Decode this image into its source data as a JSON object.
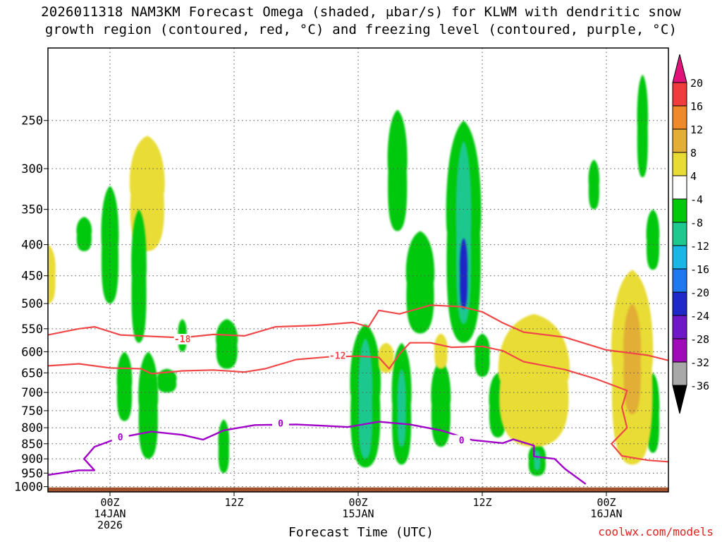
{
  "title_line1": "2026011318 NAM3KM Forecast Omega (shaded, μbar/s) for KLWM with dendritic snow",
  "title_line2": "growth region (contoured, red, °C) and freezing level (contoured, purple, °C)",
  "xlabel": "Forecast Time (UTC)",
  "credit": "coolwx.com/models",
  "chart_data": {
    "type": "heatmap",
    "x_unit": "forecast hour",
    "x_range": [
      -6,
      54
    ],
    "y_unit": "hPa",
    "y_range": [
      1020,
      190
    ],
    "y_ticks": [
      250,
      300,
      350,
      400,
      450,
      500,
      550,
      600,
      650,
      700,
      750,
      800,
      850,
      900,
      950,
      1000
    ],
    "x_ticks": [
      {
        "hour": 0,
        "lines": [
          "00Z",
          "14JAN",
          "2026"
        ]
      },
      {
        "hour": 12,
        "lines": [
          "12Z"
        ]
      },
      {
        "hour": 24,
        "lines": [
          "00Z",
          "15JAN"
        ]
      },
      {
        "hour": 36,
        "lines": [
          "12Z"
        ]
      },
      {
        "hour": 48,
        "lines": [
          "00Z",
          "16JAN"
        ]
      }
    ],
    "colorbar": {
      "labels": [
        "20",
        "16",
        "12",
        "8",
        "4",
        "-4",
        "-8",
        "-12",
        "-16",
        "-20",
        "-24",
        "-28",
        "-32",
        "-36"
      ],
      "bins": [
        {
          "lo": 20,
          "hi": null,
          "color": "#e0137a"
        },
        {
          "lo": 16,
          "hi": 20,
          "color": "#f03c3c"
        },
        {
          "lo": 12,
          "hi": 16,
          "color": "#ee8a2a"
        },
        {
          "lo": 8,
          "hi": 12,
          "color": "#e2ae36"
        },
        {
          "lo": 4,
          "hi": 8,
          "color": "#e8dc34"
        },
        {
          "lo": -4,
          "hi": 4,
          "color": "#ffffff"
        },
        {
          "lo": -8,
          "hi": -4,
          "color": "#00c80a"
        },
        {
          "lo": -12,
          "hi": -8,
          "color": "#1fc88e"
        },
        {
          "lo": -16,
          "hi": -12,
          "color": "#19b6e6"
        },
        {
          "lo": -20,
          "hi": -16,
          "color": "#1f78f0"
        },
        {
          "lo": -24,
          "hi": -20,
          "color": "#1f28c8"
        },
        {
          "lo": -28,
          "hi": -24,
          "color": "#6e18c8"
        },
        {
          "lo": -32,
          "hi": -28,
          "color": "#a00ab8"
        },
        {
          "lo": -36,
          "hi": -32,
          "color": "#a8a8a8"
        },
        {
          "lo": null,
          "hi": -36,
          "color": "#000000"
        }
      ]
    },
    "omega_features": [
      {
        "hour": -6,
        "top": 400,
        "bottom": 500,
        "width_h": 1.4,
        "value": 6
      },
      {
        "hour": 3.6,
        "top": 265,
        "bottom": 410,
        "width_h": 3.2,
        "value": 6
      },
      {
        "hour": -2.5,
        "top": 360,
        "bottom": 410,
        "width_h": 1.4,
        "value": -6
      },
      {
        "hour": 0,
        "top": 320,
        "bottom": 500,
        "width_h": 1.6,
        "value": -6
      },
      {
        "hour": 2.8,
        "top": 350,
        "bottom": 580,
        "width_h": 1.4,
        "value": -6
      },
      {
        "hour": 1.4,
        "top": 600,
        "bottom": 780,
        "width_h": 1.4,
        "value": -6
      },
      {
        "hour": 3.7,
        "top": 600,
        "bottom": 900,
        "width_h": 1.8,
        "value": -6
      },
      {
        "hour": 5.5,
        "top": 640,
        "bottom": 700,
        "width_h": 1.8,
        "value": -6
      },
      {
        "hour": 7,
        "top": 530,
        "bottom": 600,
        "width_h": 0.8,
        "value": -6
      },
      {
        "hour": 11.3,
        "top": 530,
        "bottom": 640,
        "width_h": 2,
        "value": -6
      },
      {
        "hour": 11,
        "top": 775,
        "bottom": 950,
        "width_h": 1,
        "value": -6
      },
      {
        "hour": 24.7,
        "top": 540,
        "bottom": 930,
        "width_h": 2.8,
        "value": -6
      },
      {
        "hour": 24.7,
        "top": 570,
        "bottom": 900,
        "width_h": 1.3,
        "value": -10
      },
      {
        "hour": 28.2,
        "top": 580,
        "bottom": 920,
        "width_h": 1.8,
        "value": -6
      },
      {
        "hour": 28.2,
        "top": 640,
        "bottom": 860,
        "width_h": 0.8,
        "value": -10
      },
      {
        "hour": 27.8,
        "top": 240,
        "bottom": 380,
        "width_h": 1.8,
        "value": -6
      },
      {
        "hour": 30,
        "top": 380,
        "bottom": 560,
        "width_h": 2.6,
        "value": -6
      },
      {
        "hour": 34.2,
        "top": 250,
        "bottom": 580,
        "width_h": 3.2,
        "value": -6
      },
      {
        "hour": 34.2,
        "top": 270,
        "bottom": 540,
        "width_h": 1.4,
        "value": -12
      },
      {
        "hour": 34.2,
        "top": 390,
        "bottom": 510,
        "width_h": 0.7,
        "value": -22
      },
      {
        "hour": 36,
        "top": 560,
        "bottom": 660,
        "width_h": 1.4,
        "value": -6
      },
      {
        "hour": 32,
        "top": 620,
        "bottom": 860,
        "width_h": 1.8,
        "value": -6
      },
      {
        "hour": 37.5,
        "top": 650,
        "bottom": 830,
        "width_h": 1.6,
        "value": -6
      },
      {
        "hour": 46.8,
        "top": 290,
        "bottom": 350,
        "width_h": 1,
        "value": -6
      },
      {
        "hour": 51.5,
        "top": 210,
        "bottom": 310,
        "width_h": 1,
        "value": -6
      },
      {
        "hour": 52.5,
        "top": 350,
        "bottom": 440,
        "width_h": 1.2,
        "value": -6
      },
      {
        "hour": 52.5,
        "top": 650,
        "bottom": 880,
        "width_h": 1.2,
        "value": -6
      },
      {
        "hour": 41.3,
        "top": 850,
        "bottom": 960,
        "width_h": 1.6,
        "value": -6
      },
      {
        "hour": 41.3,
        "top": 870,
        "bottom": 940,
        "width_h": 0.6,
        "value": -12
      },
      {
        "hour": 26.7,
        "top": 580,
        "bottom": 650,
        "width_h": 1.4,
        "value": 6
      },
      {
        "hour": 32,
        "top": 560,
        "bottom": 640,
        "width_h": 1.2,
        "value": 6
      },
      {
        "hour": 41,
        "top": 520,
        "bottom": 860,
        "width_h": 6.5,
        "value": 6
      },
      {
        "hour": 50.5,
        "top": 440,
        "bottom": 920,
        "width_h": 3.8,
        "value": 6
      },
      {
        "hour": 50.5,
        "top": 500,
        "bottom": 760,
        "width_h": 1.6,
        "value": 10
      }
    ],
    "dendritic_isotherms": [
      {
        "label": "-18",
        "label_at": [
          7,
          573
        ],
        "points": [
          [
            -6,
            563
          ],
          [
            -3,
            550
          ],
          [
            -1.5,
            546
          ],
          [
            1,
            563
          ],
          [
            4,
            566
          ],
          [
            7,
            569
          ],
          [
            10,
            562
          ],
          [
            13,
            565
          ],
          [
            16,
            546
          ],
          [
            20,
            543
          ],
          [
            23.5,
            537
          ],
          [
            25,
            546
          ],
          [
            26,
            513
          ],
          [
            28,
            520
          ],
          [
            31,
            503
          ],
          [
            34,
            506
          ],
          [
            36,
            516
          ],
          [
            38,
            538
          ],
          [
            40,
            557
          ],
          [
            44,
            568
          ],
          [
            48,
            596
          ],
          [
            52,
            608
          ],
          [
            54,
            620
          ]
        ]
      },
      {
        "label": "-12",
        "label_at": [
          22,
          610
        ],
        "points": [
          [
            -6,
            633
          ],
          [
            -3,
            628
          ],
          [
            0,
            638
          ],
          [
            3,
            640
          ],
          [
            4,
            652
          ],
          [
            7,
            645
          ],
          [
            10,
            643
          ],
          [
            13,
            648
          ],
          [
            15,
            640
          ],
          [
            18,
            618
          ],
          [
            21,
            612
          ],
          [
            24,
            610
          ],
          [
            26,
            613
          ],
          [
            27,
            640
          ],
          [
            28,
            605
          ],
          [
            29,
            580
          ],
          [
            31,
            580
          ],
          [
            33,
            590
          ],
          [
            36,
            588
          ],
          [
            38,
            598
          ],
          [
            40,
            623
          ],
          [
            44,
            642
          ],
          [
            47,
            665
          ],
          [
            50,
            695
          ],
          [
            49.5,
            740
          ],
          [
            50,
            800
          ],
          [
            48.5,
            850
          ],
          [
            49.5,
            890
          ],
          [
            52,
            905
          ],
          [
            54,
            910
          ]
        ]
      }
    ],
    "freezing_level": {
      "label": "0",
      "label_at": [
        [
          1,
          830
        ],
        [
          16.5,
          788
        ],
        [
          34,
          840
        ]
      ],
      "points": [
        [
          -6,
          957
        ],
        [
          -3,
          940
        ],
        [
          -1.5,
          940
        ],
        [
          -2.5,
          900
        ],
        [
          -1.5,
          860
        ],
        [
          1,
          830
        ],
        [
          4,
          812
        ],
        [
          7,
          822
        ],
        [
          9,
          837
        ],
        [
          11,
          808
        ],
        [
          14,
          792
        ],
        [
          18,
          790
        ],
        [
          20,
          793
        ],
        [
          23,
          798
        ],
        [
          26,
          782
        ],
        [
          29,
          790
        ],
        [
          32,
          808
        ],
        [
          35,
          838
        ],
        [
          38,
          848
        ],
        [
          39,
          836
        ],
        [
          41,
          856
        ],
        [
          41,
          892
        ],
        [
          43,
          900
        ],
        [
          44,
          935
        ],
        [
          46,
          990
        ]
      ]
    }
  }
}
